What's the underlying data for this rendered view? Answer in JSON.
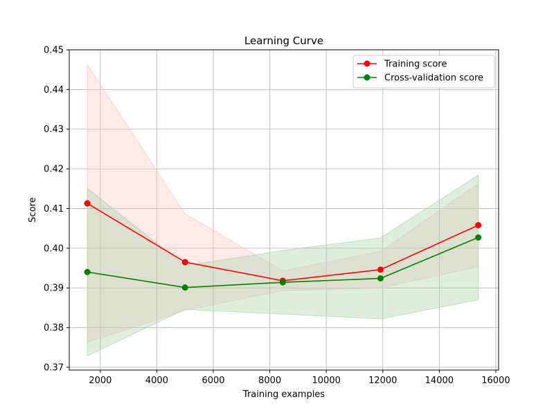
{
  "chart_data": {
    "type": "line",
    "title": "Learning Curve",
    "xlabel": "Training examples",
    "ylabel": "Score",
    "xlim": [
      900,
      16100
    ],
    "ylim": [
      0.3693,
      0.45
    ],
    "x_ticks": [
      2000,
      4000,
      6000,
      8000,
      10000,
      12000,
      14000,
      16000
    ],
    "x_tick_labels": [
      "2000",
      "4000",
      "6000",
      "8000",
      "10000",
      "12000",
      "14000",
      "16000"
    ],
    "y_ticks": [
      0.37,
      0.38,
      0.39,
      0.4,
      0.41,
      0.42,
      0.43,
      0.44,
      0.45
    ],
    "y_tick_labels": [
      "0.37",
      "0.38",
      "0.39",
      "0.40",
      "0.41",
      "0.42",
      "0.43",
      "0.44",
      "0.45"
    ],
    "grid": true,
    "legend_position": "top-right",
    "x": [
      1540,
      5000,
      8460,
      11920,
      15380
    ],
    "series": [
      {
        "name": "Training score",
        "color": "#ff0000",
        "band_color": "#ffc0c0",
        "values": [
          0.4113,
          0.3965,
          0.3918,
          0.3946,
          0.4058
        ],
        "upper": [
          0.4463,
          0.4087,
          0.3943,
          0.3992,
          0.4163
        ],
        "lower": [
          0.3763,
          0.3843,
          0.3893,
          0.39,
          0.3953
        ]
      },
      {
        "name": "Cross-validation score",
        "color": "#008000",
        "band_color": "#a0d0a0",
        "values": [
          0.394,
          0.3901,
          0.3914,
          0.3924,
          0.4027
        ],
        "upper": [
          0.4151,
          0.3956,
          0.3994,
          0.4026,
          0.4184
        ],
        "lower": [
          0.3729,
          0.3846,
          0.3834,
          0.3822,
          0.387
        ]
      }
    ]
  }
}
